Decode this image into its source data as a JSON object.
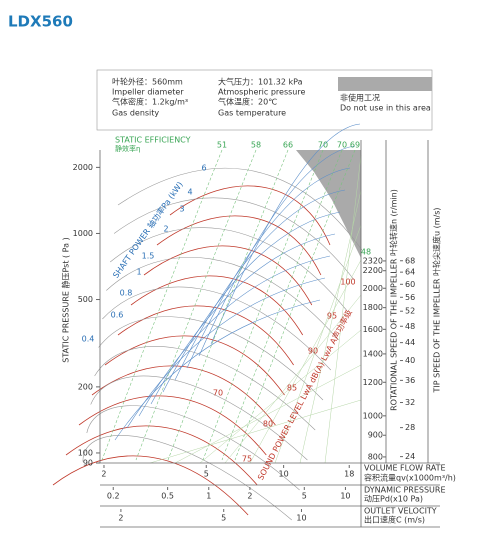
{
  "title": "LDX560",
  "info": {
    "diameter_cn": "叶轮外径：560mm",
    "diameter_en": "Impeller diameter",
    "density_cn": "气体密度：1.2kg/m³",
    "density_en": "Gas density",
    "pressure_cn": "大气压力：101.32 kPa",
    "pressure_en": "Atmospheric pressure",
    "temperature_cn": "气体温度：20℃",
    "temperature_en": "Gas temperature"
  },
  "legend": {
    "cn": "非使用工况",
    "en": "Do not use in this area"
  },
  "chart_data": {
    "type": "fan-curve",
    "y_label": "STATIC PRESSURE 静压Pst ( Pa )",
    "yscale": "log",
    "ylim": [
      90,
      2400
    ],
    "yticks": [
      90,
      100,
      200,
      500,
      1000,
      2000
    ],
    "x_label": "VOLUME FLOW RATE",
    "x_label_cn": "容积流量qv(x1000m³/h)",
    "xscale": "log",
    "xlim": [
      1.93,
      20
    ],
    "xticks": [
      2,
      5,
      10,
      18
    ],
    "dp_label": "DYNAMIC PRESSURE",
    "dp_label_cn": "动压Pd(x10 Pa)",
    "dplim": [
      0.16,
      13
    ],
    "dpticks": [
      0.2,
      0.5,
      1,
      2,
      5,
      10
    ],
    "v_label": "OUTLET VELOCITY",
    "v_label_cn": "出口速度C (m/s)",
    "vlim": [
      1.66,
      17
    ],
    "vticks": [
      2,
      5,
      10
    ],
    "rpm_label": "ROTATIONAL SPEED OF THE IMPELLER 叶轮转速n (r/min)",
    "rpmlim": [
      774,
      2462
    ],
    "rpmticks": [
      800,
      900,
      1000,
      1200,
      1400,
      1600,
      1800,
      2000,
      2200,
      2320
    ],
    "tip_label": "TIP SPEED OF THE IMPELLER 叶轮尖速度u (m/s)",
    "tiplim": [
      23.2,
      72
    ],
    "tipticks": [
      24,
      28,
      32,
      36,
      40,
      44,
      48,
      52,
      56,
      60,
      64,
      68
    ],
    "efficiency_label": "STATIC EFFICIENCY",
    "efficiency_label_cn": "静效率η",
    "efficiency_labels": [
      51,
      58,
      66,
      70,
      70,
      69,
      48
    ],
    "power_label": "SHAFT POWER 轴功率Pa (kW)",
    "power_labels": [
      6,
      4,
      3,
      2,
      1.5,
      1,
      0.8,
      0.6,
      0.4
    ],
    "sound_label": "SOUND POWER LEVEL LwA dB(A) LwA A声功率级",
    "sound_labels": [
      100,
      95,
      90,
      85,
      80,
      75,
      70
    ],
    "grid": false
  }
}
